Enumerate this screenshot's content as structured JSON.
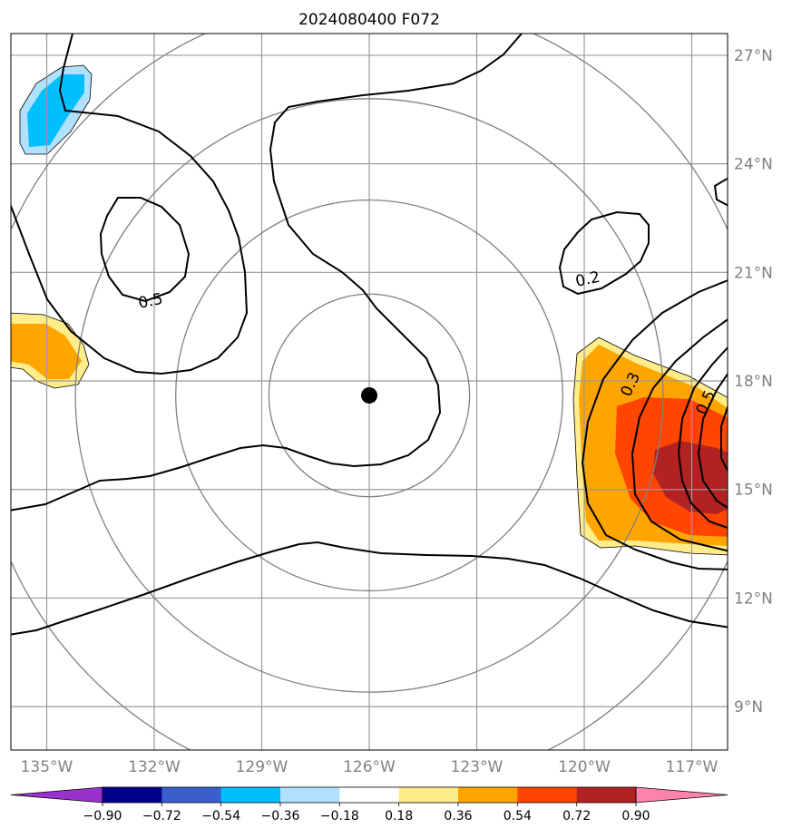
{
  "chart_data": {
    "type": "heatmap",
    "title": "2024080400 F072",
    "x_ticks": [
      "135°W",
      "132°W",
      "129°W",
      "126°W",
      "123°W",
      "120°W",
      "117°W"
    ],
    "x_tick_values": [
      -135,
      -132,
      -129,
      -126,
      -123,
      -120,
      -117
    ],
    "y_ticks": [
      "27°N",
      "24°N",
      "21°N",
      "18°N",
      "15°N",
      "12°N",
      "9°N"
    ],
    "y_tick_values": [
      27,
      24,
      21,
      18,
      15,
      12,
      9
    ],
    "xlim": [
      -136,
      -116
    ],
    "ylim": [
      7.8,
      27.6
    ],
    "center_marker": {
      "lon": -126,
      "lat": 17.6
    },
    "range_rings_deg": [
      2.8,
      5.4,
      8.2,
      11.0
    ],
    "colorbar": {
      "ticks": [
        "−0.90",
        "−0.72",
        "−0.54",
        "−0.36",
        "−0.18",
        "0.18",
        "0.36",
        "0.54",
        "0.72",
        "0.90"
      ],
      "bounds": [
        -0.9,
        -0.72,
        -0.54,
        -0.36,
        -0.18,
        0.18,
        0.36,
        0.54,
        0.72,
        0.9
      ],
      "colors": [
        "#9932cc",
        "#00008b",
        "#3a5fcd",
        "#00bfff",
        "#b0e2ff",
        "#ffffff",
        "#ffec8b",
        "#ffa500",
        "#ff4500",
        "#b22222",
        "#ff82ab"
      ]
    },
    "contour_labels": [
      {
        "text": "0.5",
        "lon": -132.1,
        "lat": 20.2,
        "angle": -12
      },
      {
        "text": "0.2",
        "lon": -119.9,
        "lat": 20.8,
        "angle": -12
      },
      {
        "text": "0.3",
        "lon": -118.7,
        "lat": 17.9,
        "angle": -65
      },
      {
        "text": "0.5",
        "lon": -116.6,
        "lat": 17.4,
        "angle": -65
      }
    ],
    "shaded_regions": [
      {
        "level": -0.36,
        "lon": -134.3,
        "lat": 25.6
      },
      {
        "level": 0.36,
        "lon": -134.9,
        "lat": 19.1
      },
      {
        "level": 0.36,
        "lon": -118.8,
        "lat": 15.9
      },
      {
        "level": 0.54,
        "lon": -117.3,
        "lat": 15.8
      },
      {
        "level": 0.72,
        "lon": -116.6,
        "lat": 15.2
      }
    ]
  }
}
